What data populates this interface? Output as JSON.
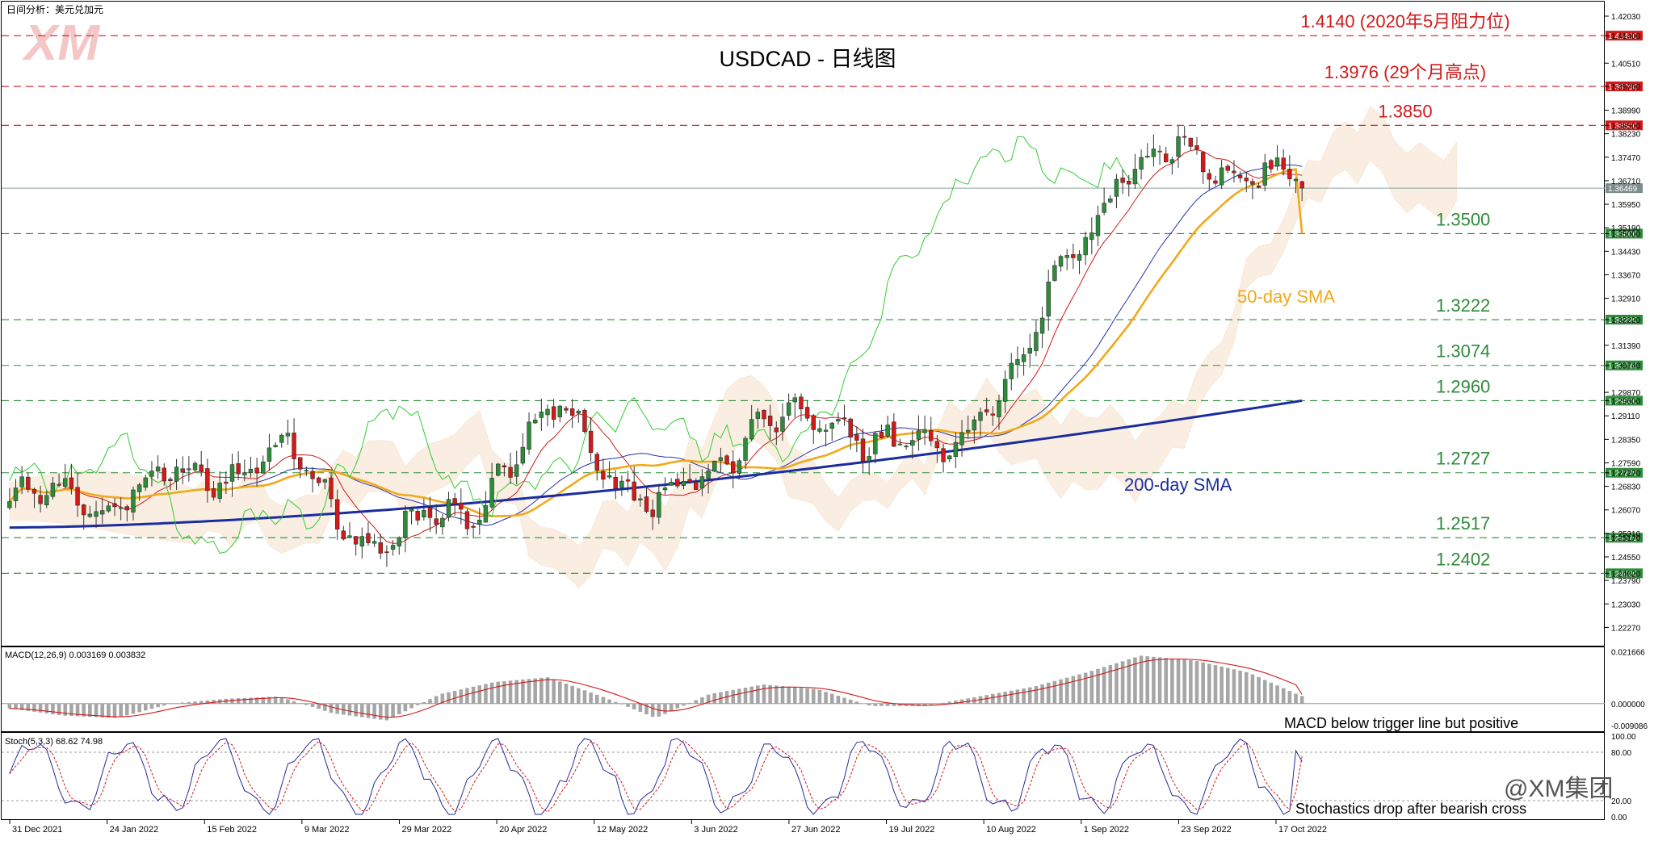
{
  "header": {
    "corner_label": "日间分析：美元兑加元",
    "chart_title": "USDCAD - 日线图",
    "watermark_logo": "XM",
    "brand_footer": "@XM集团"
  },
  "colors": {
    "candle_up": "#2e8b3a",
    "candle_down": "#d11a1a",
    "sma50": "#f0a91b",
    "sma200": "#1b2d9e",
    "tenkan": "#d11a1a",
    "kijun": "#2233aa",
    "chikou": "#33cc33",
    "cloud": "#e8b27a",
    "resistance": "#d11a1a",
    "support": "#2e8b3a",
    "macd_hist": "#a6a6a6",
    "macd_signal": "#d11a1a",
    "stoch_k": "#2a2a9a",
    "stoch_d": "#d11a1a"
  },
  "annotations": {
    "sma50_label": "50-day SMA",
    "sma200_label": "200-day SMA",
    "macd_note": "MACD below trigger line but positive",
    "stoch_note": "Stochastics drop after bearish cross"
  },
  "levels": [
    {
      "value": 1.414,
      "label": "1.4140 (2020年5月阻力位)",
      "axis_tag": "1.41400",
      "kind": "resistance"
    },
    {
      "value": 1.3976,
      "label": "1.3976 (29个月高点)",
      "axis_tag": "1.39760",
      "kind": "resistance"
    },
    {
      "value": 1.385,
      "label": "1.3850",
      "axis_tag": "1.38500",
      "kind": "resistance"
    },
    {
      "value": 1.35,
      "label": "1.3500",
      "axis_tag": "1.35000",
      "kind": "support"
    },
    {
      "value": 1.3222,
      "label": "1.3222",
      "axis_tag": "1.32220",
      "kind": "support"
    },
    {
      "value": 1.3074,
      "label": "1.3074",
      "axis_tag": "1.30740",
      "kind": "support"
    },
    {
      "value": 1.296,
      "label": "1.2960",
      "axis_tag": "1.29600",
      "kind": "support"
    },
    {
      "value": 1.2727,
      "label": "1.2727",
      "axis_tag": "1.27270",
      "kind": "support"
    },
    {
      "value": 1.2517,
      "label": "1.2517",
      "axis_tag": "1.25170",
      "kind": "support"
    },
    {
      "value": 1.2402,
      "label": "1.2402",
      "axis_tag": "1.24020",
      "kind": "support"
    }
  ],
  "current_price_tag": "1.36469",
  "chart_data": [
    {
      "type": "candlestick",
      "title": "USDCAD - 日线图",
      "x_ticks": [
        "31 Dec 2021",
        "24 Jan 2022",
        "15 Feb 2022",
        "9 Mar 2022",
        "29 Mar 2022",
        "20 Apr 2022",
        "12 May 2022",
        "3 Jun 2022",
        "27 Jun 2022",
        "19 Jul 2022",
        "10 Aug 2022",
        "1 Sep 2022",
        "23 Sep 2022",
        "17 Oct 2022"
      ],
      "y_ticks": [
        "1.42030",
        "1.41400",
        "1.40510",
        "1.39760",
        "1.38990",
        "1.38500",
        "1.38230",
        "1.37470",
        "1.36710",
        "1.35950",
        "1.35190",
        "1.35000",
        "1.34430",
        "1.33670",
        "1.32910",
        "1.32220",
        "1.31390",
        "1.30740",
        "1.29870",
        "1.29600",
        "1.29110",
        "1.28350",
        "1.27590",
        "1.27270",
        "1.26830",
        "1.26070",
        "1.25310",
        "1.25170",
        "1.24550",
        "1.24020",
        "1.23790",
        "1.23030",
        "1.22270"
      ],
      "ylim": [
        1.2168,
        1.425
      ],
      "sampled_closes": [
        {
          "date": "31 Dec 2021",
          "close": 1.264
        },
        {
          "date": "24 Jan 2022",
          "close": 1.265
        },
        {
          "date": "15 Feb 2022",
          "close": 1.272
        },
        {
          "date": "9 Mar 2022",
          "close": 1.278
        },
        {
          "date": "29 Mar 2022",
          "close": 1.248
        },
        {
          "date": "20 Apr 2022",
          "close": 1.263
        },
        {
          "date": "12 May 2022",
          "close": 1.294
        },
        {
          "date": "3 Jun 2022",
          "close": 1.258
        },
        {
          "date": "27 Jun 2022",
          "close": 1.288
        },
        {
          "date": "19 Jul 2022",
          "close": 1.29
        },
        {
          "date": "10 Aug 2022",
          "close": 1.276
        },
        {
          "date": "1 Sep 2022",
          "close": 1.311
        },
        {
          "date": "23 Sep 2022",
          "close": 1.372
        },
        {
          "date": "17 Oct 2022",
          "close": 1.374
        },
        {
          "date": "last",
          "close": 1.3647
        }
      ],
      "series": [
        {
          "name": "50-day SMA",
          "start": 1.27,
          "end": 1.35
        },
        {
          "name": "200-day SMA",
          "start": 1.255,
          "end": 1.296
        }
      ]
    },
    {
      "type": "line",
      "title": "MACD(12,26,9) 0.003169 0.003832",
      "indicator": "MACD(12,26,9)",
      "readout": "0.003169 0.003832",
      "macd": 0.003169,
      "signal": 0.003832,
      "y_ticks": [
        "0.021666",
        "0.000000",
        "-0.009086"
      ],
      "ylim": [
        -0.0115,
        0.0235
      ],
      "hist_profile": [
        -0.002,
        -0.005,
        -0.006,
        0.0,
        0.002,
        0.003,
        -0.004,
        -0.007,
        0.004,
        0.009,
        0.011,
        0.003,
        -0.006,
        0.004,
        0.008,
        0.006,
        -0.001,
        -0.001,
        0.003,
        0.007,
        0.013,
        0.02,
        0.018,
        0.013,
        0.003
      ]
    },
    {
      "type": "line",
      "title": "Stoch(5,3,3) 68.62 74.98",
      "indicator": "Stoch(5,3,3)",
      "readout": "68.62 74.98",
      "k": 68.62,
      "d": 74.98,
      "y_ticks": [
        "100.00",
        "80.00",
        "20.00",
        "0.00"
      ],
      "ylim": [
        0,
        100
      ]
    }
  ]
}
